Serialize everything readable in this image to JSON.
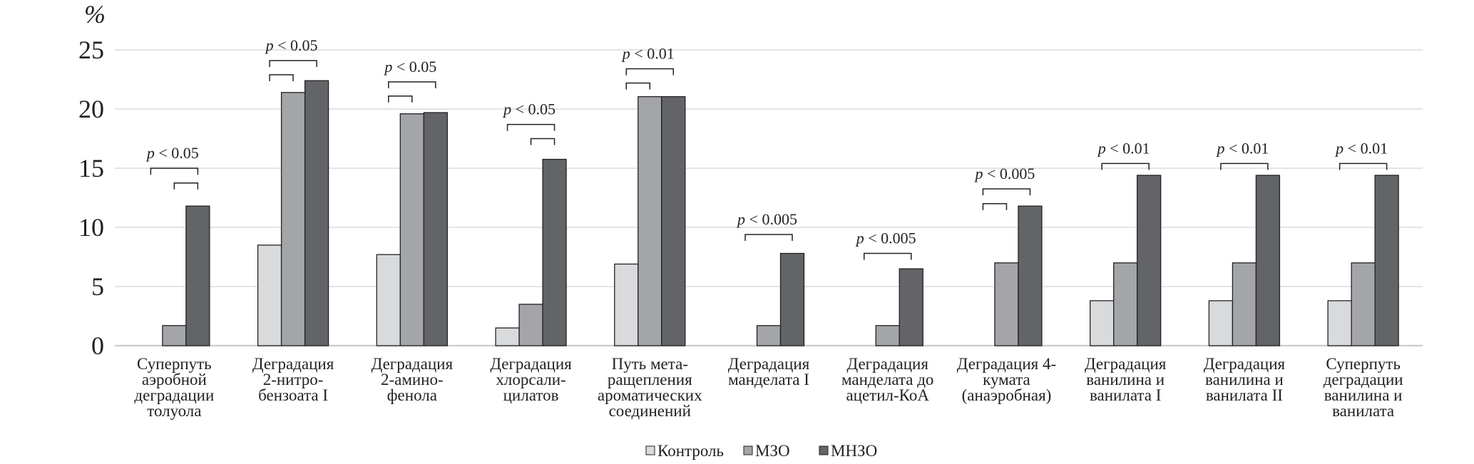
{
  "chart_data": {
    "type": "bar",
    "title": "",
    "ylabel": "%",
    "xlabel": "",
    "ylim": [
      0,
      25
    ],
    "yticks": [
      0,
      5,
      10,
      15,
      20,
      25
    ],
    "grid": true,
    "legend_position": "bottom-center",
    "categories": [
      [
        "Суперпуть",
        "аэробной",
        "деградации",
        "толуола"
      ],
      [
        "Деградация",
        "2-нитро-",
        "бензоата I"
      ],
      [
        "Деградация",
        "2-амино-",
        "фенола"
      ],
      [
        "Деградация",
        "хлорсали-",
        "цилатов"
      ],
      [
        "Путь мета-",
        "ращепления",
        "ароматических",
        "соединений"
      ],
      [
        "Деградация",
        "манделата I"
      ],
      [
        "Деградация",
        "манделата до",
        "ацетил-КоА"
      ],
      [
        "Деградация 4-",
        "кумата",
        "(анаэробная)"
      ],
      [
        "Деградация",
        "ванилина и",
        "ванилата I"
      ],
      [
        "Деградация",
        "ванилина и",
        "ванилата II"
      ],
      [
        "Суперпуть",
        "деградации",
        "ванилина и",
        "ванилата"
      ]
    ],
    "series": [
      {
        "name": "Контроль",
        "color": "#d9dadc",
        "values": [
          0,
          8.5,
          7.7,
          1.5,
          6.9,
          0,
          0,
          0,
          3.8,
          3.8,
          3.8
        ]
      },
      {
        "name": "МЗО",
        "color": "#a4a5a9",
        "values": [
          1.7,
          21.4,
          19.6,
          3.5,
          21.05,
          1.7,
          1.7,
          7.0,
          7.0,
          7.0,
          7.0
        ]
      },
      {
        "name": "МНЗО",
        "color": "#636468",
        "values": [
          11.8,
          22.4,
          19.7,
          15.75,
          21.05,
          7.8,
          6.5,
          11.8,
          14.4,
          14.4,
          14.4
        ]
      }
    ],
    "annotations": [
      {
        "text": "p < 0.05",
        "brackets": [
          {
            "from": 0,
            "to": 2,
            "y": 15.0
          },
          {
            "from": 1,
            "to": 2,
            "y": 13.75
          }
        ]
      },
      {
        "text": "p < 0.05",
        "brackets": [
          {
            "from": 0,
            "to": 2,
            "y": 24.1
          },
          {
            "from": 0,
            "to": 1,
            "y": 22.9
          }
        ]
      },
      {
        "text": "p < 0.05",
        "brackets": [
          {
            "from": 0,
            "to": 2,
            "y": 22.3
          },
          {
            "from": 0,
            "to": 1,
            "y": 21.1
          }
        ]
      },
      {
        "text": "p < 0.05",
        "brackets": [
          {
            "from": 0,
            "to": 2,
            "y": 18.7
          },
          {
            "from": 1,
            "to": 2,
            "y": 17.5
          }
        ]
      },
      {
        "text": "p < 0.01",
        "brackets": [
          {
            "from": 0,
            "to": 2,
            "y": 23.4
          },
          {
            "from": 0,
            "to": 1,
            "y": 22.2
          }
        ]
      },
      {
        "text": "p < 0.005",
        "brackets": [
          {
            "from": 0,
            "to": 2,
            "y": 9.4
          }
        ]
      },
      {
        "text": "p < 0.005",
        "brackets": [
          {
            "from": 0,
            "to": 2,
            "y": 7.8
          }
        ]
      },
      {
        "text": "p < 0.005",
        "brackets": [
          {
            "from": 0,
            "to": 2,
            "y": 13.25
          },
          {
            "from": 0,
            "to": 1,
            "y": 12.0
          }
        ]
      },
      {
        "text": "p < 0.01",
        "brackets": [
          {
            "from": 0,
            "to": 2,
            "y": 15.4
          }
        ]
      },
      {
        "text": "p < 0.01",
        "brackets": [
          {
            "from": 0,
            "to": 2,
            "y": 15.4
          }
        ]
      },
      {
        "text": "p < 0.01",
        "brackets": [
          {
            "from": 0,
            "to": 2,
            "y": 15.4
          }
        ]
      }
    ]
  }
}
